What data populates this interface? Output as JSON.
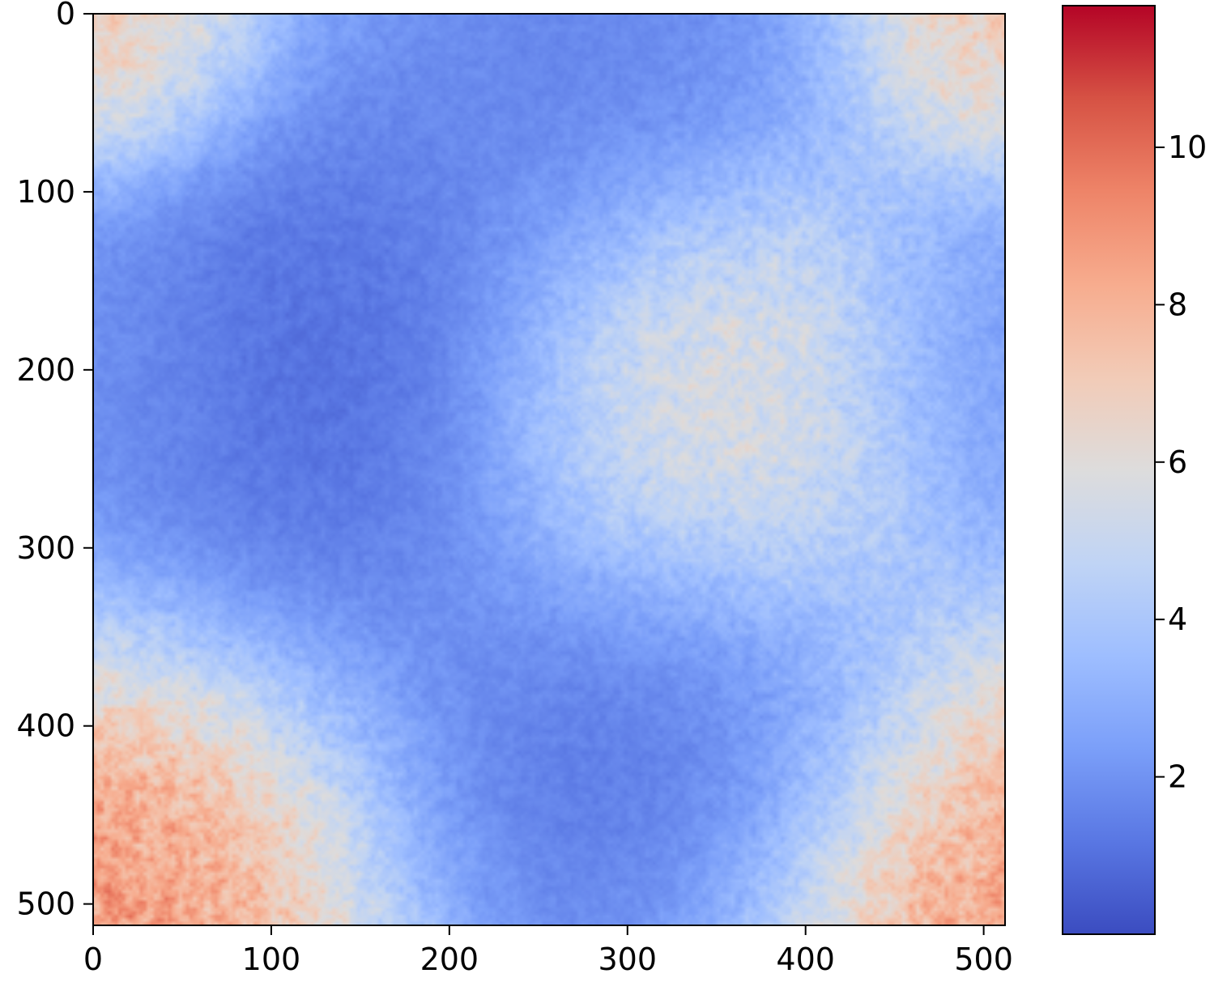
{
  "chart_data": {
    "type": "heatmap",
    "title": "",
    "xlabel": "",
    "ylabel": "",
    "grid": false,
    "colormap": "coolwarm",
    "xlim": [
      0,
      512
    ],
    "ylim": [
      512,
      0
    ],
    "xticks": [
      0,
      100,
      200,
      300,
      400,
      500
    ],
    "yticks": [
      0,
      100,
      200,
      300,
      400,
      500
    ],
    "colorbar": {
      "range": [
        0,
        11.8
      ],
      "ticks": [
        2,
        4,
        6,
        8,
        10
      ],
      "colors": [
        "#3b4cc0",
        "#5977e3",
        "#7b9ff9",
        "#9ebeff",
        "#c0d4f5",
        "#dddcdc",
        "#f2cbb7",
        "#f7ac8e",
        "#ee8468",
        "#d65244",
        "#b40426"
      ]
    },
    "field_features": [
      {
        "x": 0,
        "y": 0,
        "value": 8.0,
        "sigma": 50
      },
      {
        "x": 512,
        "y": 0,
        "value": 8.0,
        "sigma": 50
      },
      {
        "x": 0,
        "y": 512,
        "value": 10.5,
        "sigma": 85
      },
      {
        "x": 512,
        "y": 512,
        "value": 10.5,
        "sigma": 85
      },
      {
        "x": 350,
        "y": 220,
        "value": 7.2,
        "sigma": 75
      },
      {
        "x": 130,
        "y": 200,
        "value": 0.3,
        "sigma": 90
      },
      {
        "x": 320,
        "y": 420,
        "value": 0.6,
        "sigma": 85
      },
      {
        "x": 280,
        "y": 30,
        "value": 1.2,
        "sigma": 75
      },
      {
        "x": 512,
        "y": 200,
        "value": 2.0,
        "sigma": 60
      },
      {
        "x": 0,
        "y": 200,
        "value": 2.0,
        "sigma": 50
      }
    ],
    "background_value": 3.2,
    "noise_amplitude": 0.9
  }
}
